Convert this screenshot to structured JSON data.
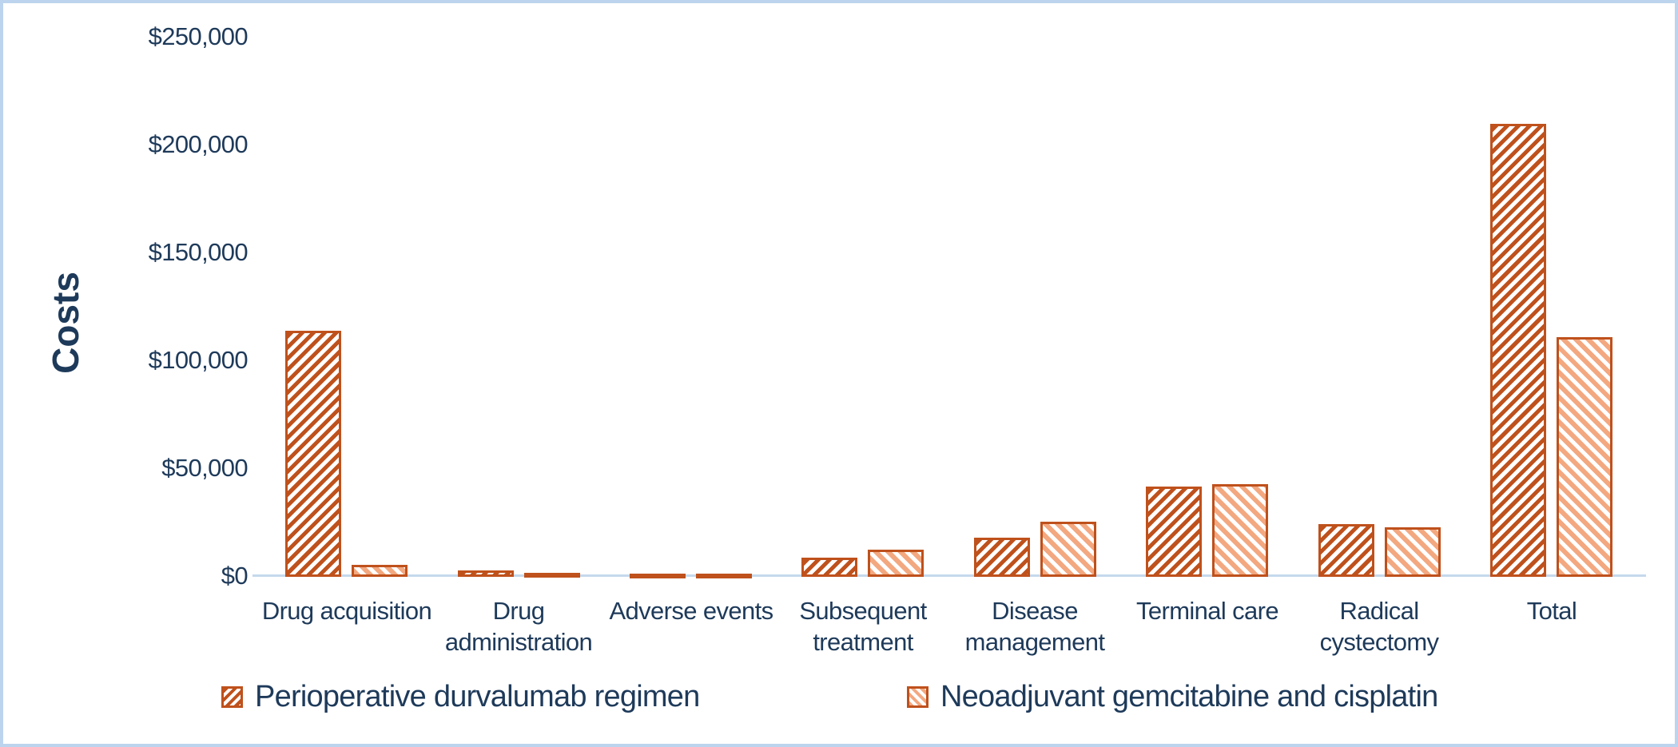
{
  "chart_data": {
    "type": "bar",
    "title": "",
    "xlabel": "",
    "ylabel": "Costs",
    "y_axis": {
      "min": 0,
      "max": 250000,
      "tick_step": 50000,
      "ticks": [
        "$0",
        "$50,000",
        "$100,000",
        "$150,000",
        "$200,000",
        "$250,000"
      ]
    },
    "grid": false,
    "legend_position": "bottom",
    "categories": [
      "Drug acquisition",
      "Drug administration",
      "Adverse events",
      "Subsequent treatment",
      "Disease management",
      "Terminal care",
      "Radical cystectomy",
      "Total"
    ],
    "category_label_lines": [
      [
        "Drug acquisition"
      ],
      [
        "Drug",
        "administration"
      ],
      [
        "Adverse events"
      ],
      [
        "Subsequent",
        "treatment"
      ],
      [
        "Disease",
        "management"
      ],
      [
        "Terminal care"
      ],
      [
        "Radical",
        "cystectomy"
      ],
      [
        "Total"
      ]
    ],
    "series": [
      {
        "name": "Perioperative durvalumab regimen",
        "hatch": "/",
        "hatch_color": "#bf511c",
        "border_color": "#bf511c",
        "values": [
          114000,
          3000,
          1300,
          9000,
          18000,
          42000,
          24500,
          210000
        ]
      },
      {
        "name": "Neoadjuvant gemcitabine and cisplatin",
        "hatch": "\\",
        "hatch_color": "#f3a880",
        "border_color": "#bf511c",
        "values": [
          5500,
          2000,
          1200,
          12500,
          25500,
          43000,
          23000,
          111000
        ]
      }
    ],
    "colors": {
      "text": "#1e3a5a",
      "axis_line": "#c5d9ec",
      "frame_border": "#bcd4ee",
      "background": "#ffffff"
    }
  }
}
